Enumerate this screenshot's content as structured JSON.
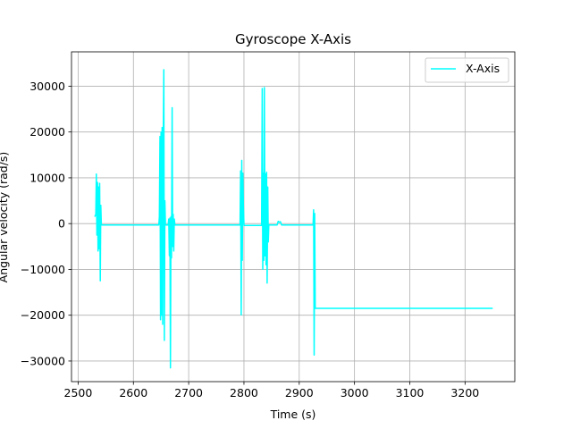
{
  "chart_data": {
    "type": "line",
    "title": "Gyroscope X-Axis",
    "xlabel": "Time (s)",
    "ylabel": "Angular velocity (rad/s)",
    "xlim": [
      2488,
      3290
    ],
    "ylim": [
      -34500,
      37500
    ],
    "xticks": [
      2500,
      2600,
      2700,
      2800,
      2900,
      3000,
      3100,
      3200
    ],
    "yticks": [
      -30000,
      -20000,
      -10000,
      0,
      10000,
      20000,
      30000
    ],
    "grid": true,
    "legend_position": "top-right",
    "series": [
      {
        "name": "X-Axis",
        "color": "#00ffff",
        "x": [
          2530,
          2532,
          2533,
          2534,
          2535,
          2536,
          2537,
          2538,
          2539,
          2540,
          2541,
          2542,
          2543,
          2550,
          2600,
          2646,
          2647,
          2648,
          2649,
          2650,
          2651,
          2652,
          2653,
          2654,
          2655,
          2656,
          2657,
          2658,
          2659,
          2660,
          2661,
          2662,
          2663,
          2664,
          2665,
          2666,
          2667,
          2668,
          2669,
          2670,
          2671,
          2672,
          2673,
          2674,
          2675,
          2676,
          2680,
          2750,
          2793,
          2794,
          2795,
          2796,
          2797,
          2798,
          2799,
          2800,
          2801,
          2802,
          2810,
          2830,
          2832,
          2833,
          2834,
          2835,
          2836,
          2837,
          2838,
          2839,
          2840,
          2841,
          2842,
          2843,
          2844,
          2845,
          2846,
          2847,
          2848,
          2849,
          2850,
          2860,
          2862,
          2864,
          2866,
          2868,
          2870,
          2900,
          2925,
          2926,
          2927,
          2928,
          2929,
          2930,
          2931,
          2932,
          2933,
          2934,
          3000,
          3100,
          3200,
          3250
        ],
        "y": [
          1500,
          2000,
          10800,
          -2500,
          9000,
          -6000,
          8000,
          -5500,
          8800,
          -12500,
          4000,
          -300,
          -300,
          -300,
          -300,
          -300,
          1500,
          19000,
          -21000,
          20000,
          -20000,
          21000,
          -22000,
          19500,
          33600,
          -25500,
          5000,
          -300,
          -300,
          -300,
          -300,
          -300,
          -300,
          1000,
          -7000,
          1200,
          -31500,
          1500,
          -7500,
          25300,
          -5000,
          2000,
          -6000,
          1000,
          -300,
          -300,
          -300,
          -300,
          -300,
          11500,
          -19900,
          13800,
          -8000,
          11000,
          4000,
          -400,
          -400,
          -400,
          -400,
          -400,
          -400,
          29500,
          -10000,
          11000,
          -8000,
          29700,
          -7000,
          10800,
          -9000,
          11200,
          -13000,
          8000,
          -4000,
          -300,
          -300,
          -300,
          -300,
          -300,
          -300,
          -300,
          500,
          300,
          400,
          -300,
          -300,
          -300,
          -300,
          3000,
          -28700,
          2200,
          -18500,
          -18500,
          -18500,
          -18500,
          -18500,
          -18500,
          -18500,
          -18500,
          -18500,
          -18500
        ]
      }
    ]
  }
}
